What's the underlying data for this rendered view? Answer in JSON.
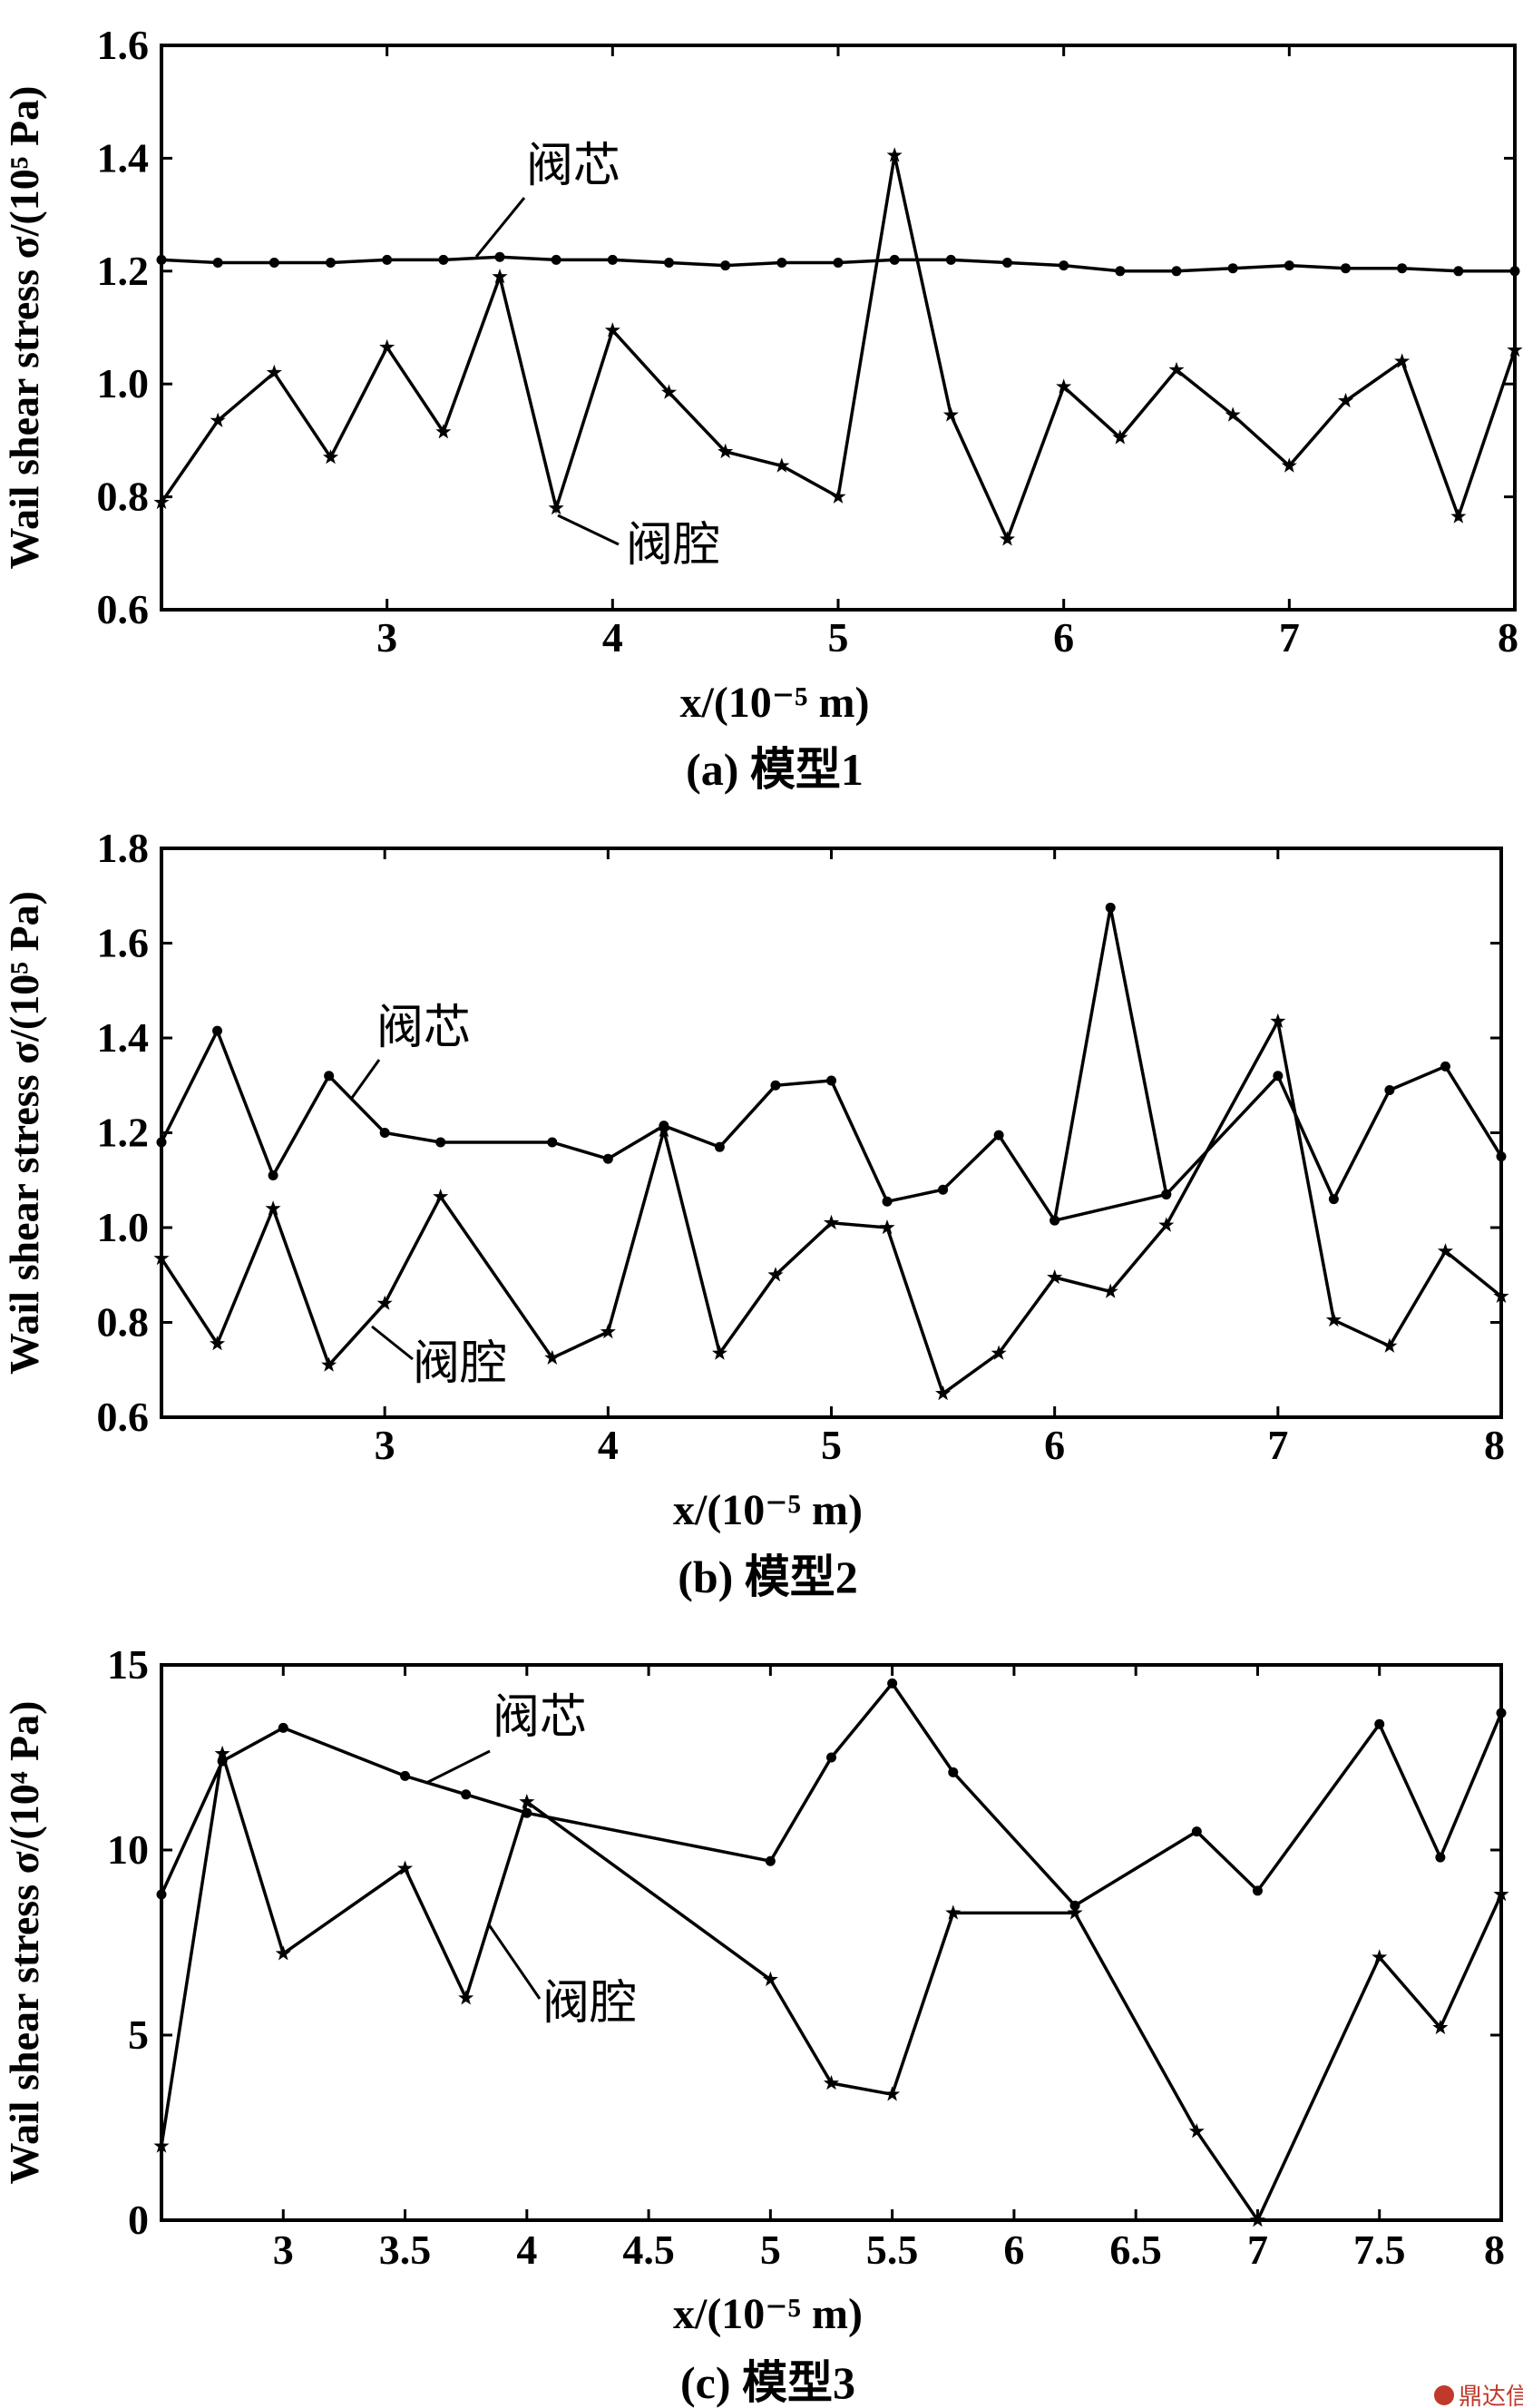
{
  "chart_data": [
    {
      "type": "line",
      "caption": "(a) 模型1",
      "ylabel": "Wail shear stress σ/(10⁵ Pa)",
      "xlabel": "x/(10⁻⁵ m)",
      "xlim": [
        2,
        8
      ],
      "ylim": [
        0.6,
        1.6
      ],
      "xticks": [
        "3",
        "4",
        "5",
        "6",
        "7",
        "8"
      ],
      "yticks": [
        "0.6",
        "0.8",
        "1.0",
        "1.2",
        "1.4",
        "1.6"
      ],
      "grid": false,
      "annotations": [
        "阀芯",
        "阀腔"
      ],
      "series": [
        {
          "name": "阀芯",
          "marker": "dot",
          "x": [
            2,
            2.25,
            2.5,
            2.75,
            3,
            3.25,
            3.5,
            3.75,
            4,
            4.25,
            4.5,
            4.75,
            5,
            5.25,
            5.5,
            5.75,
            6,
            6.25,
            6.5,
            6.75,
            7,
            7.25,
            7.5,
            7.75,
            8
          ],
          "y": [
            1.22,
            1.215,
            1.215,
            1.215,
            1.22,
            1.22,
            1.225,
            1.22,
            1.22,
            1.215,
            1.21,
            1.215,
            1.215,
            1.22,
            1.22,
            1.215,
            1.21,
            1.2,
            1.2,
            1.205,
            1.21,
            1.205,
            1.205,
            1.2,
            1.2
          ]
        },
        {
          "name": "阀腔",
          "marker": "star",
          "x": [
            2,
            2.25,
            2.5,
            2.75,
            3,
            3.25,
            3.5,
            3.75,
            4,
            4.25,
            4.5,
            4.75,
            5,
            5.25,
            5.5,
            5.75,
            6,
            6.25,
            6.5,
            6.75,
            7,
            7.25,
            7.5,
            7.75,
            8
          ],
          "y": [
            0.79,
            0.935,
            1.02,
            0.87,
            1.065,
            0.915,
            1.19,
            0.78,
            1.095,
            0.985,
            0.88,
            0.855,
            0.8,
            1.405,
            0.945,
            0.725,
            0.995,
            0.905,
            1.025,
            0.945,
            0.855,
            0.97,
            1.04,
            0.765,
            1.06
          ]
        }
      ]
    },
    {
      "type": "line",
      "caption": "(b) 模型2",
      "ylabel": "Wail shear stress σ/(10⁵ Pa)",
      "xlabel": "x/(10⁻⁵ m)",
      "xlim": [
        2,
        8
      ],
      "ylim": [
        0.6,
        1.8
      ],
      "xticks": [
        "3",
        "4",
        "5",
        "6",
        "7",
        "8"
      ],
      "yticks": [
        "0.6",
        "0.8",
        "1.0",
        "1.2",
        "1.4",
        "1.6",
        "1.8"
      ],
      "grid": false,
      "annotations": [
        "阀芯",
        "阀腔"
      ],
      "series": [
        {
          "name": "阀芯",
          "marker": "dot",
          "x": [
            2,
            2.25,
            2.5,
            2.75,
            3,
            3.25,
            3.75,
            4,
            4.25,
            4.5,
            4.75,
            5,
            5.25,
            5.5,
            5.75,
            6,
            6.5,
            7,
            7.25,
            7.5,
            7.75,
            8
          ],
          "y": [
            1.18,
            1.415,
            1.11,
            1.32,
            1.2,
            1.18,
            1.18,
            1.145,
            1.215,
            1.17,
            1.3,
            1.31,
            1.055,
            1.08,
            1.195,
            1.015,
            1.07,
            1.32,
            1.06,
            1.29,
            1.34,
            1.15
          ]
        },
        {
          "name": "阀腔",
          "marker": "star",
          "x": [
            2,
            2.25,
            2.5,
            2.75,
            3,
            3.25,
            3.75,
            4,
            4.25,
            4.5,
            4.75,
            5,
            5.25,
            5.5,
            5.75,
            6,
            6.25,
            6.5,
            7,
            7.25,
            7.5,
            7.75,
            8
          ],
          "y": [
            0.935,
            0.755,
            1.04,
            0.71,
            0.84,
            1.065,
            0.725,
            0.78,
            1.205,
            0.735,
            0.9,
            1.01,
            1.0,
            0.65,
            0.735,
            0.895,
            0.865,
            1.005,
            1.435,
            0.805,
            0.75,
            0.95,
            0.855
          ]
        },
        {
          "name": "",
          "marker": "dot",
          "x": [
            6,
            6.25,
            6.5
          ],
          "y": [
            1.015,
            1.675,
            1.07
          ]
        }
      ]
    },
    {
      "type": "line",
      "caption": "(c) 模型3",
      "ylabel": "Wail shear stress σ/(10⁴ Pa)",
      "xlabel": "x/(10⁻⁵ m)",
      "xlim": [
        2.5,
        8
      ],
      "ylim": [
        0,
        15
      ],
      "xticks": [
        "3",
        "3.5",
        "4",
        "4.5",
        "5",
        "5.5",
        "6",
        "6.5",
        "7",
        "7.5",
        "8"
      ],
      "yticks": [
        "0",
        "5",
        "10",
        "15"
      ],
      "grid": false,
      "annotations": [
        "阀芯",
        "阀腔"
      ],
      "series": [
        {
          "name": "阀芯",
          "marker": "dot",
          "x": [
            2.5,
            2.75,
            3,
            3.5,
            3.75,
            4,
            5,
            5.25,
            5.5,
            5.75,
            6.25,
            6.75,
            7,
            7.5,
            7.75,
            8
          ],
          "y": [
            8.8,
            12.4,
            13.3,
            12.0,
            11.5,
            11.0,
            9.7,
            12.5,
            14.5,
            12.1,
            8.5,
            10.5,
            8.9,
            13.4,
            9.8,
            13.7
          ]
        },
        {
          "name": "阀腔",
          "marker": "star",
          "x": [
            2.5,
            2.75,
            3,
            3.5,
            3.75,
            4,
            5,
            5.25,
            5.5,
            5.75,
            6.25,
            6.75,
            7,
            7.5,
            7.75,
            8
          ],
          "y": [
            2.0,
            12.6,
            7.2,
            9.5,
            6.0,
            11.3,
            6.5,
            3.7,
            3.4,
            8.3,
            8.3,
            2.4,
            0.0,
            7.1,
            5.2,
            8.8
          ]
        }
      ]
    }
  ],
  "watermark": "鼎达信"
}
